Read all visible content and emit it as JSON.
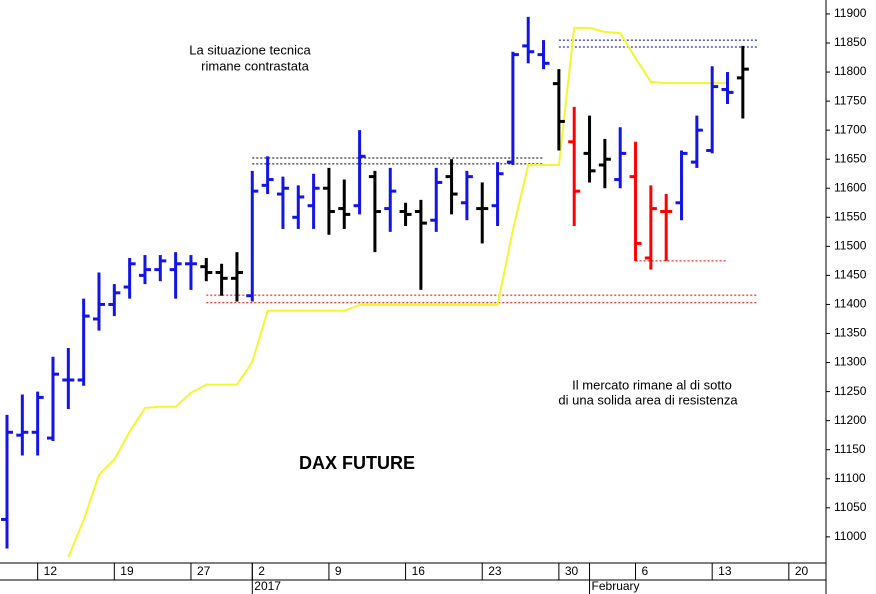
{
  "chart_data": {
    "type": "ohlc",
    "title": "DAX FUTURE",
    "annotations": [
      [
        "La situazione tecnica",
        "rimane contrastata"
      ],
      [
        "Il mercato rimane al di sotto",
        "di una solida area di resistenza"
      ]
    ],
    "categories": [
      null,
      null,
      "12",
      null,
      null,
      null,
      null,
      "19",
      null,
      null,
      null,
      null,
      "27",
      null,
      null,
      null,
      "2",
      null,
      null,
      null,
      null,
      "9",
      null,
      null,
      null,
      null,
      "16",
      null,
      null,
      null,
      null,
      "23",
      null,
      null,
      null,
      null,
      "30",
      null,
      null,
      null,
      null,
      "6",
      null,
      null,
      null,
      null,
      "13",
      null,
      null,
      null,
      null,
      "20"
    ],
    "x_groups": [
      null,
      null,
      null,
      null,
      null,
      null,
      null,
      null,
      null,
      null,
      null,
      null,
      null,
      null,
      null,
      null,
      "2017",
      null,
      null,
      null,
      null,
      null,
      null,
      null,
      null,
      null,
      null,
      null,
      null,
      null,
      null,
      null,
      null,
      null,
      null,
      null,
      null,
      null,
      "February",
      null,
      null,
      null,
      null,
      null,
      null,
      null,
      null,
      null,
      null,
      null,
      null,
      null
    ],
    "open": [
      11030,
      11175,
      11180,
      11170,
      11270,
      11270,
      11375,
      11400,
      11430,
      11450,
      11460,
      11460,
      11470,
      11465,
      11455,
      11445,
      11415,
      11605,
      11590,
      11550,
      11570,
      11600,
      11565,
      11570,
      11620,
      11565,
      11560,
      11560,
      11545,
      11620,
      11575,
      11565,
      11570,
      11645,
      11845,
      11830,
      11780,
      11680,
      11660,
      11640,
      11615,
      11620,
      11480,
      11560,
      11575,
      11645,
      11665,
      11770,
      11790,
      null,
      null,
      null
    ],
    "high": [
      11210,
      11245,
      11250,
      11310,
      11325,
      11410,
      11455,
      11435,
      11480,
      11485,
      11485,
      11490,
      11485,
      11480,
      11470,
      11490,
      11630,
      11655,
      11620,
      11605,
      11625,
      11635,
      11615,
      11700,
      11630,
      11635,
      11575,
      11580,
      11635,
      11650,
      11630,
      11610,
      11645,
      11835,
      11895,
      11855,
      11805,
      11740,
      11725,
      11685,
      11705,
      11680,
      11605,
      11590,
      11665,
      11725,
      11810,
      11800,
      11845,
      null,
      null,
      null
    ],
    "low": [
      10980,
      11140,
      11140,
      11165,
      11220,
      11260,
      11355,
      11380,
      11410,
      11435,
      11440,
      11410,
      11425,
      11440,
      11415,
      11405,
      11405,
      11590,
      11530,
      11530,
      11530,
      11520,
      11530,
      11555,
      11490,
      11525,
      11535,
      11425,
      11525,
      11555,
      11545,
      11505,
      11535,
      11640,
      11815,
      11805,
      11665,
      11535,
      11610,
      11600,
      11600,
      11475,
      11460,
      11475,
      11545,
      11635,
      11660,
      11745,
      11720,
      null,
      null,
      null
    ],
    "close": [
      11180,
      11180,
      11240,
      11280,
      11270,
      11380,
      11400,
      11420,
      11470,
      11460,
      11475,
      11470,
      11470,
      11455,
      11445,
      11455,
      11595,
      11615,
      11600,
      11585,
      11600,
      11560,
      11555,
      11655,
      11560,
      11595,
      11555,
      11540,
      11610,
      11590,
      11620,
      11565,
      11625,
      11830,
      11835,
      11815,
      11715,
      11595,
      11630,
      11650,
      11660,
      11505,
      11565,
      11560,
      11660,
      11700,
      11775,
      11765,
      11805,
      null,
      null,
      null
    ],
    "bar_colors": [
      "#1414e6",
      "#1414e6",
      "#1414e6",
      "#1414e6",
      "#1414e6",
      "#1414e6",
      "#1414e6",
      "#1414e6",
      "#1414e6",
      "#1414e6",
      "#1414e6",
      "#1414e6",
      "#1414e6",
      "#000000",
      "#000000",
      "#000000",
      "#1414e6",
      "#1414e6",
      "#1414e6",
      "#1414e6",
      "#1414e6",
      "#000000",
      "#000000",
      "#1414e6",
      "#000000",
      "#1414e6",
      "#000000",
      "#000000",
      "#1414e6",
      "#000000",
      "#1414e6",
      "#000000",
      "#1414e6",
      "#1414e6",
      "#1414e6",
      "#1414e6",
      "#000000",
      "#ff0000",
      "#000000",
      "#000000",
      "#1414e6",
      "#ff0000",
      "#ff0000",
      "#ff0000",
      "#1414e6",
      "#1414e6",
      "#1414e6",
      "#1414e6",
      "#000000",
      null,
      null,
      null
    ],
    "overlay": {
      "color": "#f5f530",
      "values": [
        null,
        null,
        null,
        null,
        10965,
        11029,
        11107,
        11133,
        11181,
        11222,
        11224,
        11224,
        11248,
        11262,
        11262,
        11262,
        11301,
        11389,
        11389,
        11389,
        11389,
        11389,
        11389,
        11399,
        11399,
        11399,
        11399,
        11399,
        11399,
        11399,
        11399,
        11399,
        11399,
        11528,
        11640,
        11640,
        11640,
        11876,
        11876,
        11869,
        11867,
        11824,
        11783,
        11781,
        11781,
        11781,
        11781,
        11781,
        null,
        null,
        null,
        null
      ]
    },
    "levels": [
      {
        "value": 11855,
        "color": "#00008b",
        "from": 36,
        "to": 49
      },
      {
        "value": 11843,
        "color": "#00008b",
        "from": 36,
        "to": 49
      },
      {
        "value": 11652,
        "color": "#000000",
        "from": 16,
        "to": 35
      },
      {
        "value": 11642,
        "color": "#000000",
        "from": 16,
        "to": 35
      },
      {
        "value": 11416,
        "color": "#e00000",
        "from": 13,
        "to": 49
      },
      {
        "value": 11403,
        "color": "#e00000",
        "from": 13,
        "to": 49
      },
      {
        "value": 11475,
        "color": "#e00000",
        "from": 41,
        "to": 47
      }
    ],
    "ylim": [
      10955,
      11924
    ],
    "yticks": [
      11000,
      11050,
      11100,
      11150,
      11200,
      11250,
      11300,
      11350,
      11400,
      11450,
      11500,
      11550,
      11600,
      11650,
      11700,
      11750,
      11800,
      11850,
      11900
    ]
  }
}
